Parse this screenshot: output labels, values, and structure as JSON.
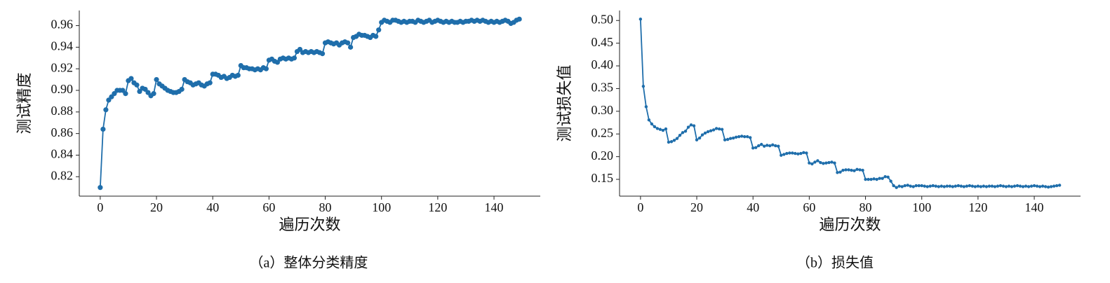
{
  "chart_data": [
    {
      "type": "line",
      "caption": "（a）整体分类精度",
      "xlabel": "遍历次数",
      "ylabel": "测试精度",
      "color": "#1f6eab",
      "marker": true,
      "x": [
        0,
        1,
        2,
        3,
        4,
        5,
        6,
        7,
        8,
        9,
        10,
        11,
        12,
        13,
        14,
        15,
        16,
        17,
        18,
        19,
        20,
        21,
        22,
        23,
        24,
        25,
        26,
        27,
        28,
        29,
        30,
        31,
        32,
        33,
        34,
        35,
        36,
        37,
        38,
        39,
        40,
        41,
        42,
        43,
        44,
        45,
        46,
        47,
        48,
        49,
        50,
        51,
        52,
        53,
        54,
        55,
        56,
        57,
        58,
        59,
        60,
        61,
        62,
        63,
        64,
        65,
        66,
        67,
        68,
        69,
        70,
        71,
        72,
        73,
        74,
        75,
        76,
        77,
        78,
        79,
        80,
        81,
        82,
        83,
        84,
        85,
        86,
        87,
        88,
        89,
        90,
        91,
        92,
        93,
        94,
        95,
        96,
        97,
        98,
        99,
        100,
        101,
        102,
        103,
        104,
        105,
        106,
        107,
        108,
        109,
        110,
        111,
        112,
        113,
        114,
        115,
        116,
        117,
        118,
        119,
        120,
        121,
        122,
        123,
        124,
        125,
        126,
        127,
        128,
        129,
        130,
        131,
        132,
        133,
        134,
        135,
        136,
        137,
        138,
        139,
        140,
        141,
        142,
        143,
        144,
        145,
        146,
        147,
        148,
        149
      ],
      "values": [
        0.81,
        0.864,
        0.882,
        0.891,
        0.894,
        0.897,
        0.9,
        0.9,
        0.9,
        0.897,
        0.909,
        0.911,
        0.907,
        0.905,
        0.899,
        0.902,
        0.901,
        0.898,
        0.895,
        0.897,
        0.91,
        0.906,
        0.904,
        0.902,
        0.9,
        0.899,
        0.898,
        0.898,
        0.899,
        0.901,
        0.91,
        0.908,
        0.907,
        0.905,
        0.906,
        0.907,
        0.905,
        0.904,
        0.906,
        0.907,
        0.915,
        0.915,
        0.914,
        0.912,
        0.913,
        0.911,
        0.912,
        0.914,
        0.913,
        0.914,
        0.923,
        0.921,
        0.921,
        0.92,
        0.92,
        0.919,
        0.92,
        0.919,
        0.921,
        0.92,
        0.928,
        0.929,
        0.927,
        0.926,
        0.929,
        0.93,
        0.929,
        0.93,
        0.929,
        0.93,
        0.936,
        0.938,
        0.935,
        0.936,
        0.935,
        0.936,
        0.935,
        0.936,
        0.935,
        0.934,
        0.944,
        0.945,
        0.944,
        0.943,
        0.944,
        0.942,
        0.944,
        0.945,
        0.944,
        0.94,
        0.949,
        0.95,
        0.952,
        0.951,
        0.951,
        0.95,
        0.949,
        0.951,
        0.95,
        0.956,
        0.963,
        0.965,
        0.964,
        0.963,
        0.965,
        0.965,
        0.964,
        0.963,
        0.964,
        0.963,
        0.964,
        0.964,
        0.963,
        0.965,
        0.964,
        0.963,
        0.964,
        0.965,
        0.963,
        0.964,
        0.965,
        0.964,
        0.963,
        0.964,
        0.963,
        0.964,
        0.963,
        0.963,
        0.964,
        0.963,
        0.964,
        0.964,
        0.965,
        0.964,
        0.965,
        0.964,
        0.965,
        0.964,
        0.963,
        0.964,
        0.963,
        0.964,
        0.963,
        0.964,
        0.965,
        0.964,
        0.962,
        0.963,
        0.965,
        0.966
      ],
      "xlim": [
        -7.45,
        156.45
      ],
      "ylim": [
        0.802,
        0.974
      ],
      "xticks": [
        0,
        20,
        40,
        60,
        80,
        100,
        120,
        140
      ],
      "yticks": [
        0.82,
        0.84,
        0.86,
        0.88,
        {
          "value": 0.9,
          "label": "0.90"
        },
        0.92,
        0.94,
        0.96
      ]
    },
    {
      "type": "line",
      "caption": "（b）损失值",
      "xlabel": "遍历次数",
      "ylabel": "测试损失值",
      "color": "#1f6eab",
      "marker": true,
      "x": [
        0,
        1,
        2,
        3,
        4,
        5,
        6,
        7,
        8,
        9,
        10,
        11,
        12,
        13,
        14,
        15,
        16,
        17,
        18,
        19,
        20,
        21,
        22,
        23,
        24,
        25,
        26,
        27,
        28,
        29,
        30,
        31,
        32,
        33,
        34,
        35,
        36,
        37,
        38,
        39,
        40,
        41,
        42,
        43,
        44,
        45,
        46,
        47,
        48,
        49,
        50,
        51,
        52,
        53,
        54,
        55,
        56,
        57,
        58,
        59,
        60,
        61,
        62,
        63,
        64,
        65,
        66,
        67,
        68,
        69,
        70,
        71,
        72,
        73,
        74,
        75,
        76,
        77,
        78,
        79,
        80,
        81,
        82,
        83,
        84,
        85,
        86,
        87,
        88,
        89,
        90,
        91,
        92,
        93,
        94,
        95,
        96,
        97,
        98,
        99,
        100,
        101,
        102,
        103,
        104,
        105,
        106,
        107,
        108,
        109,
        110,
        111,
        112,
        113,
        114,
        115,
        116,
        117,
        118,
        119,
        120,
        121,
        122,
        123,
        124,
        125,
        126,
        127,
        128,
        129,
        130,
        131,
        132,
        133,
        134,
        135,
        136,
        137,
        138,
        139,
        140,
        141,
        142,
        143,
        144,
        145,
        146,
        147,
        148,
        149
      ],
      "values": [
        0.503,
        0.355,
        0.31,
        0.281,
        0.272,
        0.266,
        0.262,
        0.26,
        0.258,
        0.261,
        0.232,
        0.233,
        0.236,
        0.24,
        0.247,
        0.253,
        0.256,
        0.265,
        0.27,
        0.268,
        0.237,
        0.241,
        0.248,
        0.252,
        0.255,
        0.257,
        0.259,
        0.262,
        0.261,
        0.26,
        0.237,
        0.238,
        0.24,
        0.241,
        0.243,
        0.244,
        0.245,
        0.244,
        0.244,
        0.242,
        0.219,
        0.22,
        0.224,
        0.227,
        0.223,
        0.225,
        0.224,
        0.226,
        0.224,
        0.223,
        0.203,
        0.205,
        0.207,
        0.208,
        0.208,
        0.207,
        0.206,
        0.207,
        0.209,
        0.208,
        0.186,
        0.184,
        0.188,
        0.191,
        0.187,
        0.185,
        0.186,
        0.187,
        0.188,
        0.186,
        0.165,
        0.166,
        0.17,
        0.171,
        0.171,
        0.17,
        0.169,
        0.172,
        0.171,
        0.17,
        0.15,
        0.15,
        0.15,
        0.151,
        0.15,
        0.152,
        0.152,
        0.156,
        0.155,
        0.146,
        0.136,
        0.132,
        0.135,
        0.134,
        0.136,
        0.137,
        0.135,
        0.134,
        0.136,
        0.136,
        0.136,
        0.135,
        0.134,
        0.135,
        0.136,
        0.135,
        0.134,
        0.135,
        0.134,
        0.135,
        0.135,
        0.134,
        0.135,
        0.136,
        0.135,
        0.134,
        0.135,
        0.136,
        0.135,
        0.134,
        0.135,
        0.134,
        0.135,
        0.134,
        0.135,
        0.135,
        0.134,
        0.135,
        0.136,
        0.135,
        0.134,
        0.135,
        0.134,
        0.135,
        0.136,
        0.135,
        0.134,
        0.135,
        0.134,
        0.135,
        0.136,
        0.135,
        0.134,
        0.135,
        0.134,
        0.133,
        0.134,
        0.135,
        0.136,
        0.137
      ],
      "xlim": [
        -7.45,
        156.45
      ],
      "ylim": [
        0.113,
        0.522
      ],
      "xticks": [
        0,
        20,
        40,
        60,
        80,
        100,
        120,
        140
      ],
      "yticks": [
        0.15,
        {
          "value": 0.2,
          "label": "0.20"
        },
        0.25,
        {
          "value": 0.3,
          "label": "0.30"
        },
        0.35,
        {
          "value": 0.4,
          "label": "0.40"
        },
        0.45,
        {
          "value": 0.5,
          "label": "0.50"
        }
      ]
    }
  ]
}
